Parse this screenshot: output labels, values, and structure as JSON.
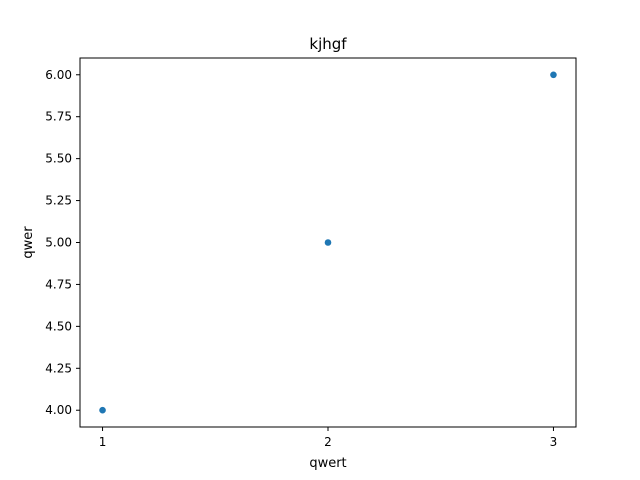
{
  "chart_data": {
    "type": "scatter",
    "title": "kjhgf",
    "xlabel": "qwert",
    "ylabel": "qwer",
    "x": [
      1,
      2,
      3
    ],
    "y": [
      4.0,
      5.0,
      6.0
    ],
    "xlim": [
      0.9,
      3.1
    ],
    "ylim": [
      3.9,
      6.1
    ],
    "xticks": [
      1,
      2,
      3
    ],
    "xtick_labels": [
      "1",
      "2",
      "3"
    ],
    "yticks": [
      4.0,
      4.25,
      4.5,
      4.75,
      5.0,
      5.25,
      5.5,
      5.75,
      6.0
    ],
    "ytick_labels": [
      "4.00",
      "4.25",
      "4.50",
      "4.75",
      "5.00",
      "5.25",
      "5.50",
      "5.75",
      "6.00"
    ],
    "grid": false,
    "colors": {
      "marker": "#1f77b4",
      "axes": "#000000",
      "background": "#ffffff"
    }
  }
}
